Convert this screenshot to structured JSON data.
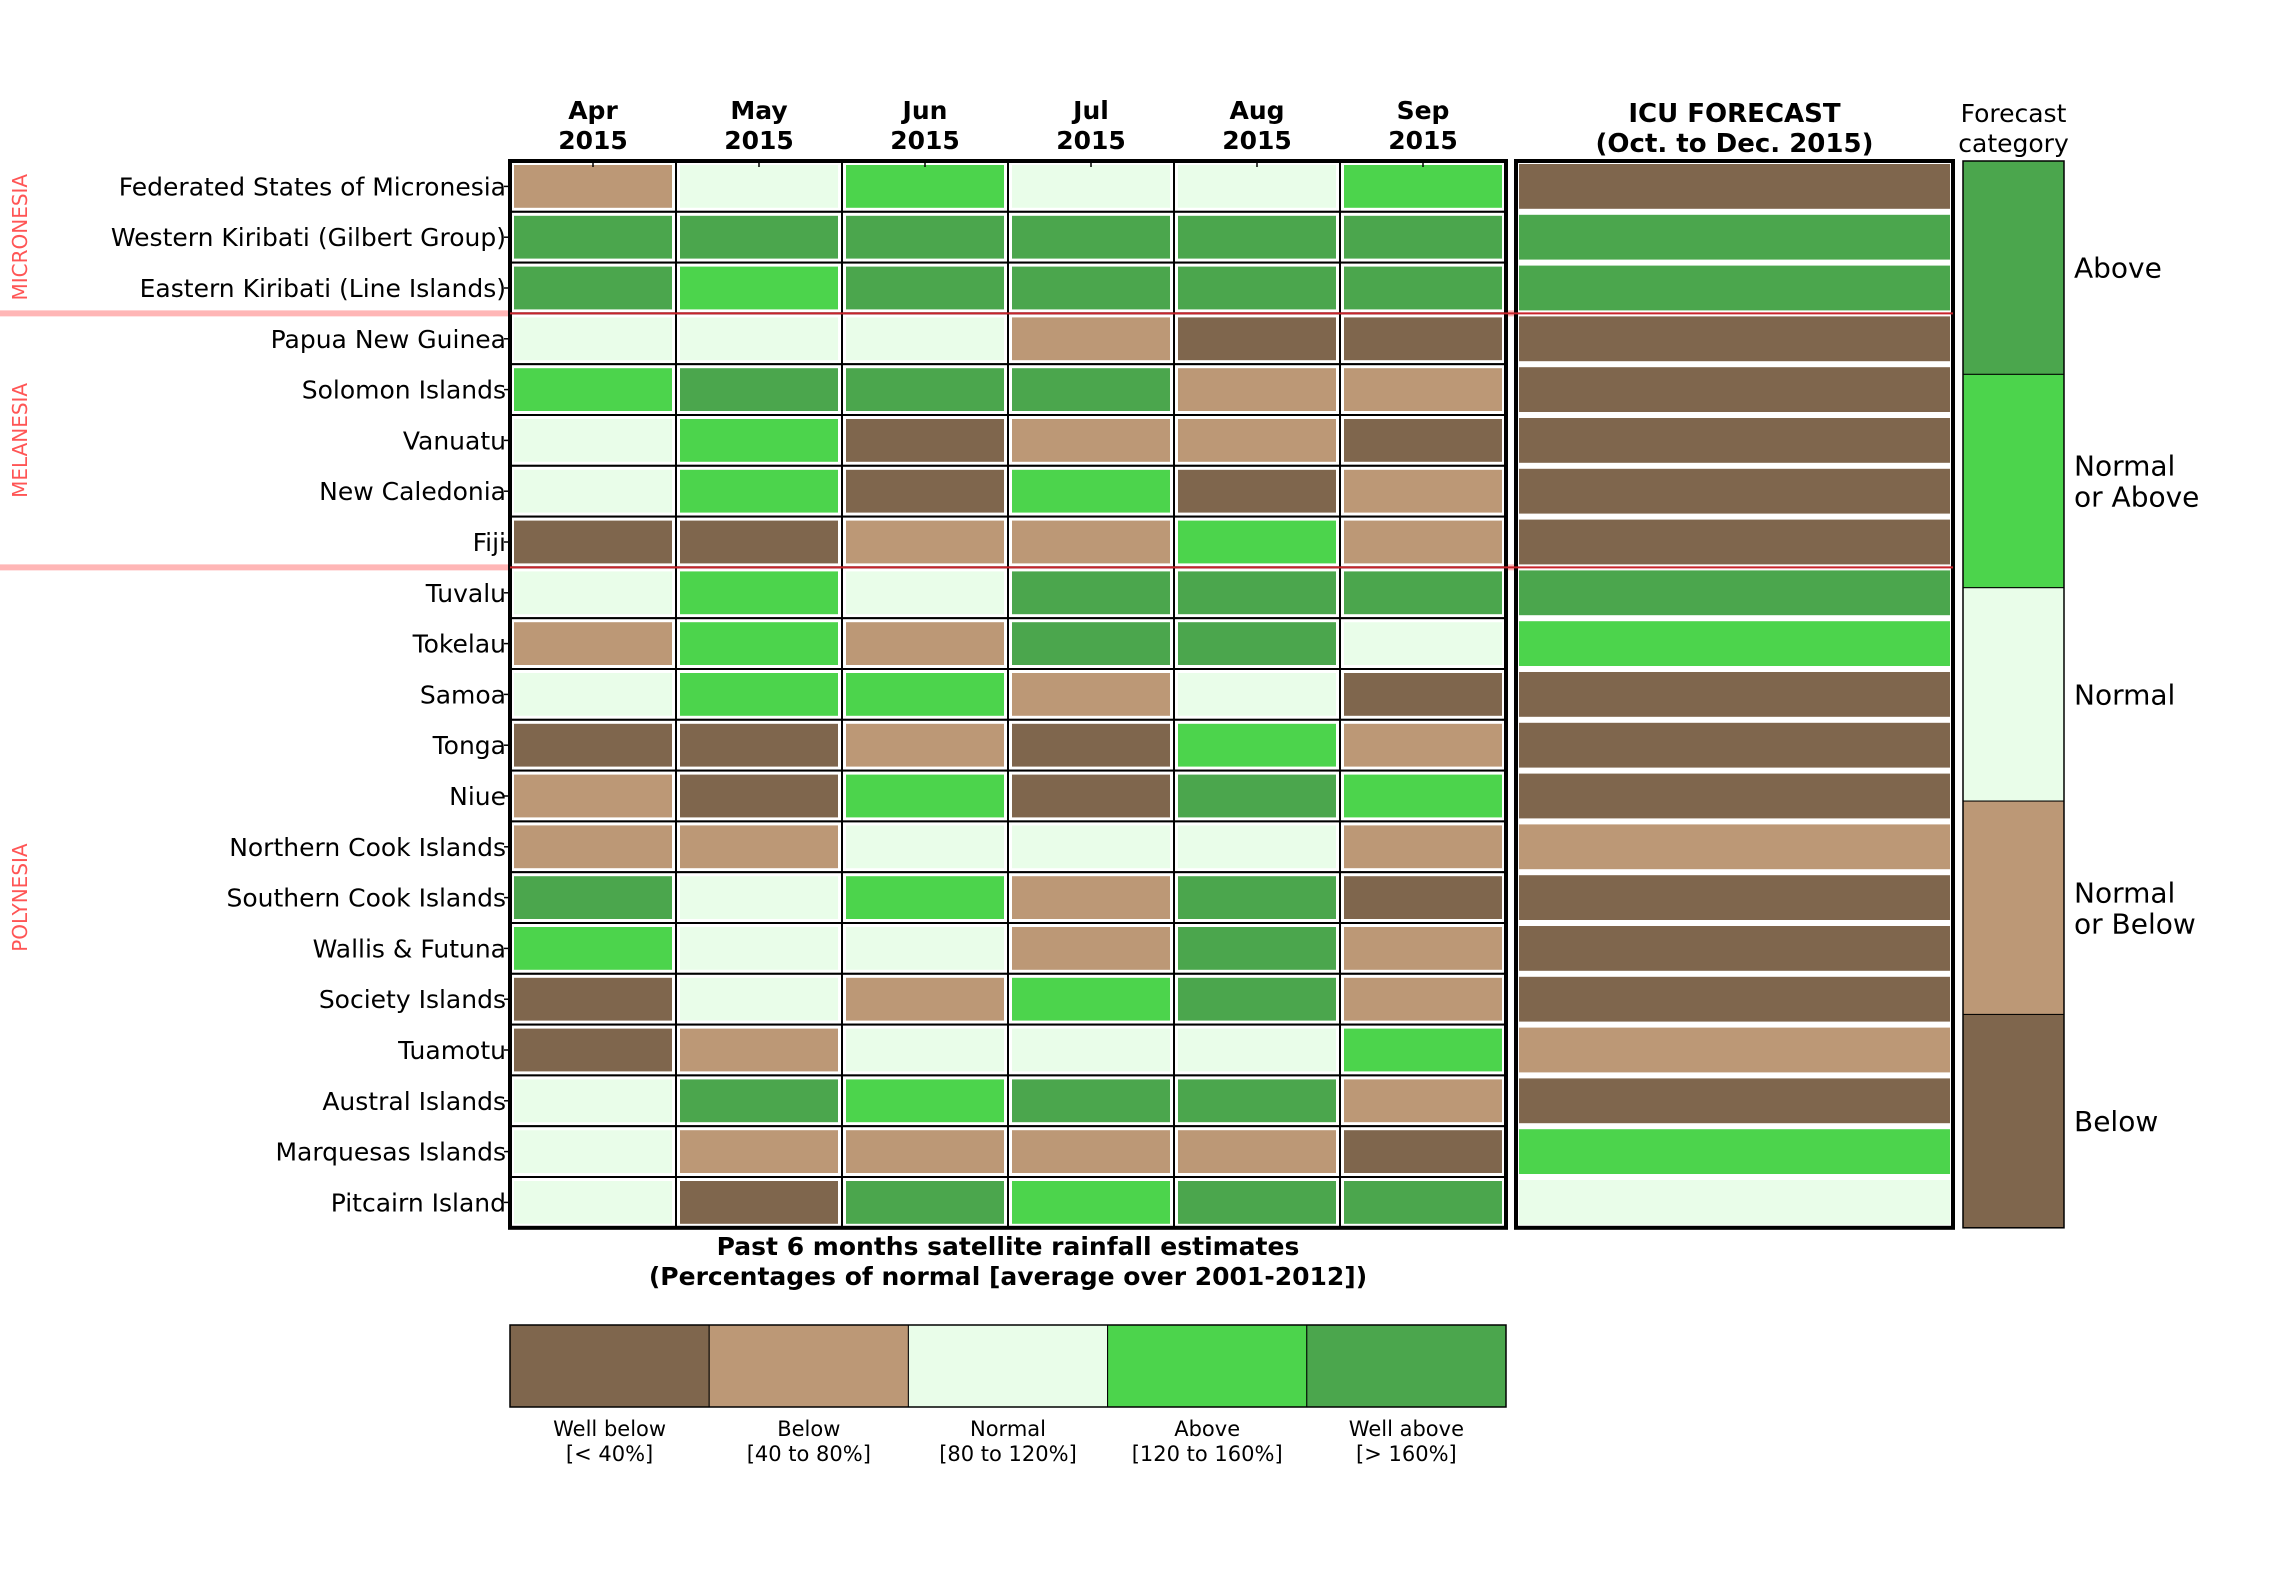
{
  "chart_data": {
    "type": "heatmap",
    "months": [
      {
        "month": "Apr",
        "year": "2015"
      },
      {
        "month": "May",
        "year": "2015"
      },
      {
        "month": "Jun",
        "year": "2015"
      },
      {
        "month": "Jul",
        "year": "2015"
      },
      {
        "month": "Aug",
        "year": "2015"
      },
      {
        "month": "Sep",
        "year": "2015"
      }
    ],
    "forecast_header": {
      "title": "ICU FORECAST",
      "period": "(Oct. to Dec. 2015)"
    },
    "forecast_legend_title": [
      "Forecast",
      "category"
    ],
    "regions": [
      {
        "name": "MICRONESIA",
        "rows": [
          0,
          2
        ]
      },
      {
        "name": "MELANESIA",
        "rows": [
          3,
          7
        ]
      },
      {
        "name": "POLYNESIA",
        "rows": [
          8,
          20
        ]
      }
    ],
    "rows": [
      {
        "name": "Federated States of Micronesia",
        "past": [
          1,
          2,
          3,
          2,
          2,
          3
        ],
        "forecast": 0
      },
      {
        "name": "Western Kiribati (Gilbert Group)",
        "past": [
          4,
          4,
          4,
          4,
          4,
          4
        ],
        "forecast": 4
      },
      {
        "name": "Eastern Kiribati (Line Islands)",
        "past": [
          4,
          3,
          4,
          4,
          4,
          4
        ],
        "forecast": 4
      },
      {
        "name": "Papua New Guinea",
        "past": [
          2,
          2,
          2,
          1,
          0,
          0
        ],
        "forecast": 0
      },
      {
        "name": "Solomon Islands",
        "past": [
          3,
          4,
          4,
          4,
          1,
          1
        ],
        "forecast": 0
      },
      {
        "name": "Vanuatu",
        "past": [
          2,
          3,
          0,
          1,
          1,
          0
        ],
        "forecast": 0
      },
      {
        "name": "New Caledonia",
        "past": [
          2,
          3,
          0,
          3,
          0,
          1
        ],
        "forecast": 0
      },
      {
        "name": "Fiji",
        "past": [
          0,
          0,
          1,
          1,
          3,
          1
        ],
        "forecast": 0
      },
      {
        "name": "Tuvalu",
        "past": [
          2,
          3,
          2,
          4,
          4,
          4
        ],
        "forecast": 4
      },
      {
        "name": "Tokelau",
        "past": [
          1,
          3,
          1,
          4,
          4,
          2
        ],
        "forecast": 3
      },
      {
        "name": "Samoa",
        "past": [
          2,
          3,
          3,
          1,
          2,
          0
        ],
        "forecast": 0
      },
      {
        "name": "Tonga",
        "past": [
          0,
          0,
          1,
          0,
          3,
          1
        ],
        "forecast": 0
      },
      {
        "name": "Niue",
        "past": [
          1,
          0,
          3,
          0,
          4,
          3
        ],
        "forecast": 0
      },
      {
        "name": "Northern Cook Islands",
        "past": [
          1,
          1,
          2,
          2,
          2,
          1
        ],
        "forecast": 1
      },
      {
        "name": "Southern Cook Islands",
        "past": [
          4,
          2,
          3,
          1,
          4,
          0
        ],
        "forecast": 0
      },
      {
        "name": "Wallis & Futuna",
        "past": [
          3,
          2,
          2,
          1,
          4,
          1
        ],
        "forecast": 0
      },
      {
        "name": "Society Islands",
        "past": [
          0,
          2,
          1,
          3,
          4,
          1
        ],
        "forecast": 0
      },
      {
        "name": "Tuamotu",
        "past": [
          0,
          1,
          2,
          2,
          2,
          3
        ],
        "forecast": 1
      },
      {
        "name": "Austral Islands",
        "past": [
          2,
          4,
          3,
          4,
          4,
          1
        ],
        "forecast": 0
      },
      {
        "name": "Marquesas Islands",
        "past": [
          2,
          1,
          1,
          1,
          1,
          0
        ],
        "forecast": 3
      },
      {
        "name": "Pitcairn Island",
        "past": [
          2,
          0,
          4,
          3,
          4,
          4
        ],
        "forecast": 2
      }
    ],
    "categories": [
      {
        "label": "Well below",
        "range": "[< 40%]",
        "color": "#7f664d"
      },
      {
        "label": "Below",
        "range": "[40 to 80%]",
        "color": "#bc9876"
      },
      {
        "label": "Normal",
        "range": "[80 to 120%]",
        "color": "#e9fde9"
      },
      {
        "label": "Above",
        "range": "[120 to 160%]",
        "color": "#4cd44c"
      },
      {
        "label": "Well above",
        "range": "[> 160%]",
        "color": "#4ba64d"
      }
    ],
    "forecast_categories": [
      {
        "lines": [
          "Above"
        ],
        "color": "#4ba64d"
      },
      {
        "lines": [
          "Normal",
          "or Above"
        ],
        "color": "#4cd44c"
      },
      {
        "lines": [
          "Normal"
        ],
        "color": "#e9fde9"
      },
      {
        "lines": [
          "Normal",
          "or Below"
        ],
        "color": "#bc9876"
      },
      {
        "lines": [
          "Below"
        ],
        "color": "#7f664d"
      }
    ],
    "past_title": [
      "Past 6 months satellite rainfall estimates",
      "(Percentages of normal [average over 2001-2012])"
    ],
    "region_label_color": "#ff5555",
    "region_divider_color": "#ffb6b6"
  }
}
